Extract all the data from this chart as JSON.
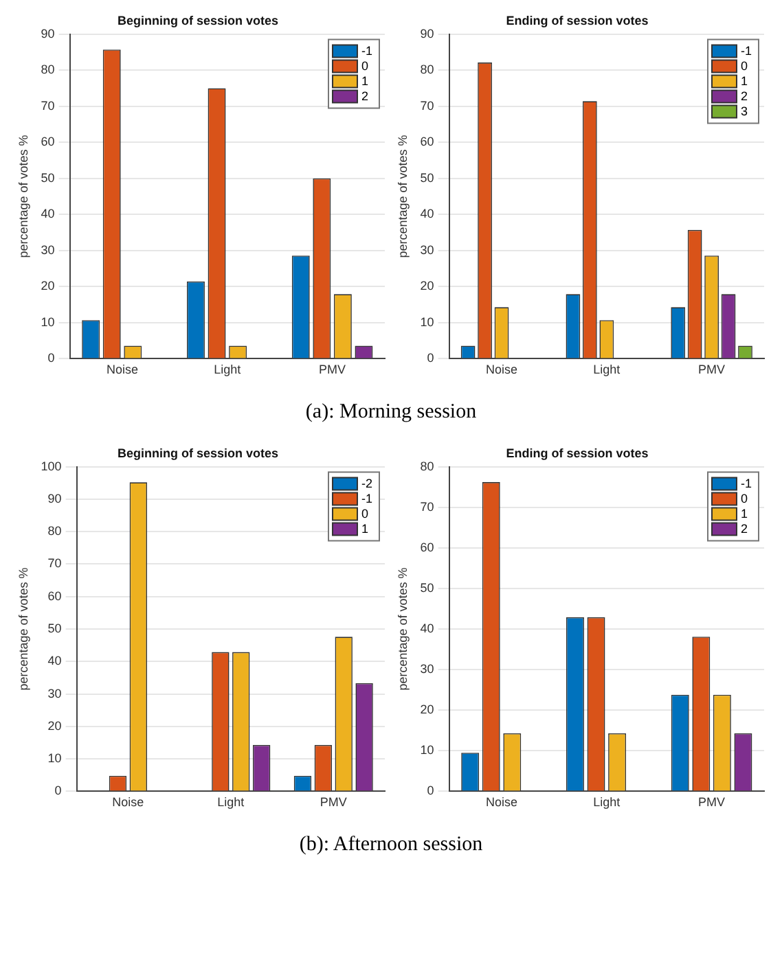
{
  "chart_data": [
    {
      "type": "bar",
      "title": "Beginning of session votes",
      "ylabel": "percentage of votes %",
      "categories": [
        "Noise",
        "Light",
        "PMV"
      ],
      "ylim": [
        0,
        90
      ],
      "yticks": [
        0,
        10,
        20,
        30,
        40,
        50,
        60,
        70,
        80,
        90
      ],
      "grid": "y",
      "legend": "top right",
      "series": [
        {
          "name": "-1",
          "color": "#0072bd",
          "values": [
            10.7,
            21.4,
            28.6
          ]
        },
        {
          "name": "0",
          "color": "#d95319",
          "values": [
            85.7,
            75,
            50
          ]
        },
        {
          "name": "1",
          "color": "#edb120",
          "values": [
            3.6,
            3.6,
            17.9
          ]
        },
        {
          "name": "2",
          "color": "#7e2f8e",
          "values": [
            0,
            0,
            3.6
          ]
        }
      ]
    },
    {
      "type": "bar",
      "title": "Ending of session votes",
      "ylabel": "percentage of votes %",
      "categories": [
        "Noise",
        "Light",
        "PMV"
      ],
      "ylim": [
        0,
        90
      ],
      "yticks": [
        0,
        10,
        20,
        30,
        40,
        50,
        60,
        70,
        80,
        90
      ],
      "grid": "y",
      "legend": "top right",
      "annotations": [
        "(a): Morning session"
      ],
      "series": [
        {
          "name": "-1",
          "color": "#0072bd",
          "values": [
            3.6,
            17.9,
            14.3
          ]
        },
        {
          "name": "0",
          "color": "#d95319",
          "values": [
            82.1,
            71.4,
            35.7
          ]
        },
        {
          "name": "1",
          "color": "#edb120",
          "values": [
            14.3,
            10.7,
            28.6
          ]
        },
        {
          "name": "2",
          "color": "#7e2f8e",
          "values": [
            0,
            0,
            17.9
          ]
        },
        {
          "name": "3",
          "color": "#77ac30",
          "values": [
            0,
            0,
            3.6
          ]
        }
      ]
    },
    {
      "type": "bar",
      "title": "Beginning of session votes",
      "ylabel": "percentage of votes %",
      "categories": [
        "Noise",
        "Light",
        "PMV"
      ],
      "ylim": [
        0,
        100
      ],
      "yticks": [
        0,
        10,
        20,
        30,
        40,
        50,
        60,
        70,
        80,
        90,
        100
      ],
      "grid": "y",
      "legend": "top right",
      "series": [
        {
          "name": "-2",
          "color": "#0072bd",
          "values": [
            0,
            0,
            4.8
          ]
        },
        {
          "name": "-1",
          "color": "#d95319",
          "values": [
            4.8,
            42.9,
            14.3
          ]
        },
        {
          "name": "0",
          "color": "#edb120",
          "values": [
            95.2,
            42.9,
            47.6
          ]
        },
        {
          "name": "1",
          "color": "#7e2f8e",
          "values": [
            0,
            14.3,
            33.3
          ]
        }
      ]
    },
    {
      "type": "bar",
      "title": "Ending of session votes",
      "ylabel": "percentage of votes %",
      "categories": [
        "Noise",
        "Light",
        "PMV"
      ],
      "ylim": [
        0,
        80
      ],
      "yticks": [
        0,
        10,
        20,
        30,
        40,
        50,
        60,
        70,
        80
      ],
      "grid": "y",
      "legend": "top right",
      "annotations": [
        "(b): Afternoon session"
      ],
      "series": [
        {
          "name": "-1",
          "color": "#0072bd",
          "values": [
            9.5,
            42.9,
            23.8
          ]
        },
        {
          "name": "0",
          "color": "#d95319",
          "values": [
            76.2,
            42.9,
            38.1
          ]
        },
        {
          "name": "1",
          "color": "#edb120",
          "values": [
            14.3,
            14.3,
            23.8
          ]
        },
        {
          "name": "2",
          "color": "#7e2f8e",
          "values": [
            0,
            0,
            14.3
          ]
        }
      ]
    }
  ]
}
